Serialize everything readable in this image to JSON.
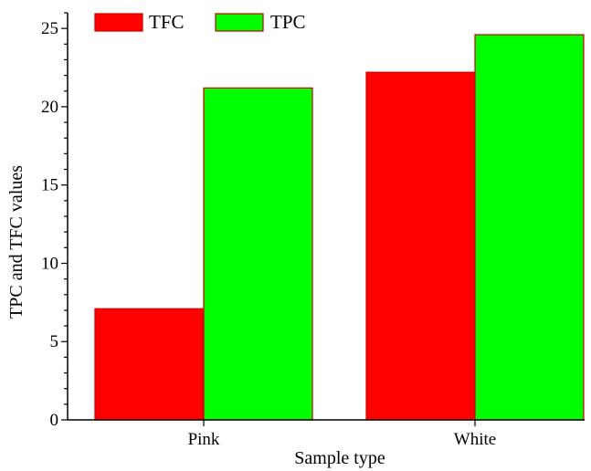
{
  "chart_data": {
    "type": "bar",
    "categories": [
      "Pink",
      "White"
    ],
    "series": [
      {
        "name": "TFC",
        "values": [
          7.1,
          22.2
        ],
        "color": "#ff0000"
      },
      {
        "name": "TPC",
        "values": [
          21.2,
          24.6
        ],
        "color": "#00ff00"
      }
    ],
    "xlabel": "Sample type",
    "ylabel": "TPC and TFC values",
    "ylim": [
      0,
      26
    ],
    "yticks": [
      0,
      5,
      10,
      15,
      20,
      25
    ],
    "grid": false,
    "legend_position": "top-left",
    "bar_edge_color": "#cc0000"
  }
}
